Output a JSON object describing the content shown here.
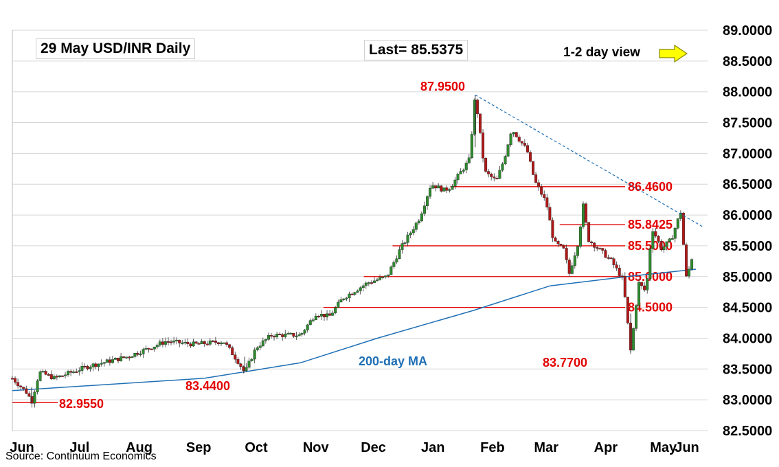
{
  "header": {
    "title": "29 May  USD/INR  Daily",
    "last": "Last= 85.5375",
    "view": "1-2 day view"
  },
  "source": "Source: Continuum Economics",
  "colors": {
    "level": "#e30000",
    "ma": "#1f6fb5",
    "candle_up": "#2e8b2e",
    "candle_down": "#b01818",
    "arrow": "#ffff00"
  },
  "icons": {
    "view_arrow": "right-arrow-icon"
  },
  "chart_data": {
    "type": "candlestick",
    "title": "29 May  USD/INR  Daily",
    "ylim": [
      82.5,
      89.0
    ],
    "y_ticks": [
      "89.0000",
      "88.5000",
      "88.0000",
      "87.5000",
      "87.0000",
      "86.5000",
      "86.0000",
      "85.5000",
      "85.0000",
      "84.5000",
      "84.0000",
      "83.5000",
      "83.0000",
      "82.5000"
    ],
    "x_ticks": [
      "Jun",
      "Jul",
      "Aug",
      "Sep",
      "Oct",
      "Nov",
      "Dec",
      "Jan",
      "Feb",
      "Mar",
      "Apr",
      "May",
      "Jun"
    ],
    "grid": "horizontal",
    "price_path": [
      [
        0,
        83.35
      ],
      [
        8,
        83.1
      ],
      [
        10,
        82.96
      ],
      [
        14,
        83.45
      ],
      [
        22,
        83.35
      ],
      [
        40,
        83.55
      ],
      [
        60,
        83.7
      ],
      [
        80,
        83.95
      ],
      [
        95,
        83.9
      ],
      [
        110,
        83.95
      ],
      [
        118,
        83.6
      ],
      [
        121,
        83.44
      ],
      [
        127,
        83.85
      ],
      [
        135,
        84.05
      ],
      [
        150,
        84.05
      ],
      [
        158,
        84.4
      ],
      [
        165,
        84.35
      ],
      [
        172,
        84.65
      ],
      [
        185,
        84.9
      ],
      [
        195,
        85.0
      ],
      [
        202,
        85.45
      ],
      [
        212,
        85.95
      ],
      [
        218,
        86.5
      ],
      [
        225,
        86.4
      ],
      [
        228,
        86.45
      ],
      [
        238,
        86.9
      ],
      [
        241,
        87.95
      ],
      [
        246,
        86.7
      ],
      [
        252,
        86.55
      ],
      [
        256,
        86.9
      ],
      [
        260,
        87.4
      ],
      [
        268,
        87.05
      ],
      [
        272,
        86.55
      ],
      [
        278,
        86.2
      ],
      [
        282,
        85.55
      ],
      [
        287,
        85.45
      ],
      [
        290,
        85.05
      ],
      [
        295,
        85.6
      ],
      [
        297,
        86.2
      ],
      [
        300,
        85.6
      ],
      [
        307,
        85.4
      ],
      [
        312,
        85.25
      ],
      [
        318,
        84.95
      ],
      [
        322,
        83.77
      ],
      [
        326,
        84.9
      ],
      [
        330,
        84.75
      ],
      [
        333,
        85.8
      ],
      [
        338,
        85.45
      ],
      [
        343,
        85.6
      ],
      [
        348,
        86.05
      ],
      [
        351,
        84.95
      ],
      [
        355,
        85.45
      ]
    ],
    "ma_200": [
      [
        0,
        83.15
      ],
      [
        100,
        83.35
      ],
      [
        150,
        83.6
      ],
      [
        190,
        84.0
      ],
      [
        240,
        84.45
      ],
      [
        280,
        84.85
      ],
      [
        320,
        85.0
      ],
      [
        356,
        85.12
      ]
    ],
    "ma_label": "200-day MA",
    "levels": [
      {
        "value": 86.46,
        "label": "86.4600"
      },
      {
        "value": 85.8425,
        "label": "85.8425"
      },
      {
        "value": 85.5,
        "label": "85.5000"
      },
      {
        "value": 85.0,
        "label": "85.0000"
      },
      {
        "value": 84.5,
        "label": "84.5000"
      }
    ],
    "annotations": [
      {
        "label": "87.9500",
        "value": 87.95
      },
      {
        "label": "83.4400",
        "value": 83.44
      },
      {
        "label": "83.7700",
        "value": 83.77
      },
      {
        "label": "82.9550",
        "value": 82.955
      }
    ],
    "trendline": {
      "from": [
        241,
        87.95
      ],
      "to": [
        360,
        85.8
      ]
    }
  }
}
